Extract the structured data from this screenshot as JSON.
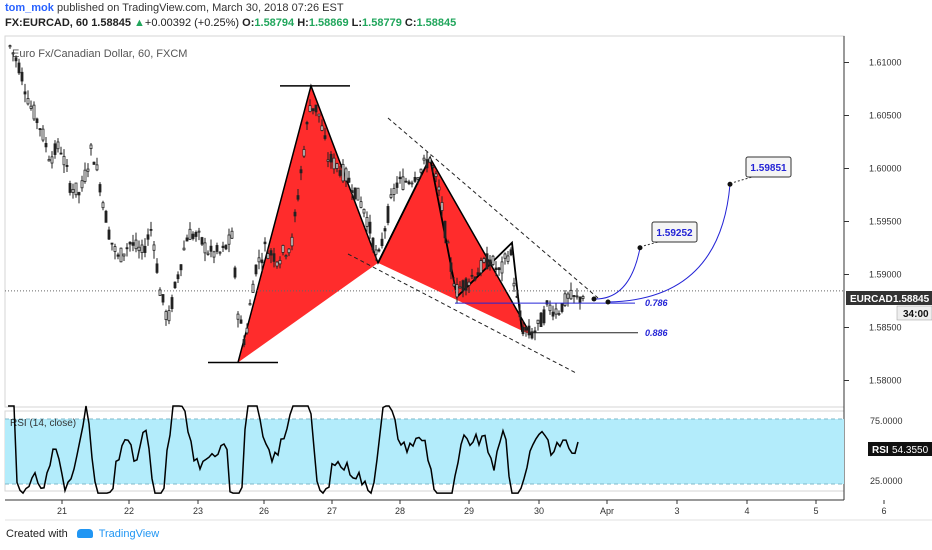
{
  "header": {
    "user": "tom_mok",
    "published": "published on TradingView.com, March 30, 2018 07:26 EST",
    "symbol": "FX:EURCAD, 60",
    "last": "1.58845",
    "change_arrow": "▲",
    "change": "+0.00392 (+0.25%)",
    "open_label": "O:",
    "open": "1.58794",
    "high_label": "H:",
    "high": "1.58869",
    "low_label": "L:",
    "low": "1.58779",
    "close_label": "C:",
    "close": "1.58845"
  },
  "chart_data": {
    "type": "candlestick",
    "title": "Euro Fx/Canadian Dollar, 60, FXCM",
    "y_ticks": [
      1.61,
      1.605,
      1.6,
      1.595,
      1.59,
      1.585,
      1.58
    ],
    "y_tick_labels": [
      "1.61000",
      "1.60500",
      "1.60000",
      "1.59500",
      "1.59000",
      "1.58500",
      "1.58000"
    ],
    "ylim": [
      1.5775,
      1.6125
    ],
    "x_tick_labels": [
      "21",
      "22",
      "23",
      "26",
      "27",
      "28",
      "29",
      "30",
      "Apr",
      "3",
      "4",
      "5",
      "6"
    ],
    "current_price": 1.58845,
    "price_tag_label": "EURCAD",
    "price_tag_value": "1.58845",
    "countdown": "34:00",
    "pattern": {
      "type": "bearish-gartley",
      "X": 1.5817,
      "A": 1.6078,
      "B": 1.5911,
      "C": 1.601,
      "D": 1.5843
    },
    "fib_levels": [
      {
        "label": "0.786",
        "price": 1.5873
      },
      {
        "label": "0.886",
        "price": 1.5845
      }
    ],
    "targets": [
      {
        "label": "1.59252",
        "price": 1.59252
      },
      {
        "label": "1.59851",
        "price": 1.59851
      }
    ],
    "rsi": {
      "title": "RSI (14, close)",
      "tag_label": "RSI",
      "value": "54.3550",
      "y_tick_labels": [
        "75.0000",
        "25.0000"
      ],
      "upper": 75,
      "lower": 25
    }
  },
  "colors": {
    "pattern_fill": "#ff1a1a",
    "up_candle": "#555555",
    "rsi_band": "#b3ecfb",
    "projection": "#2424d6",
    "price_tag": "#333333"
  },
  "footer": {
    "created_with": "Created with",
    "brand": "TradingView"
  }
}
